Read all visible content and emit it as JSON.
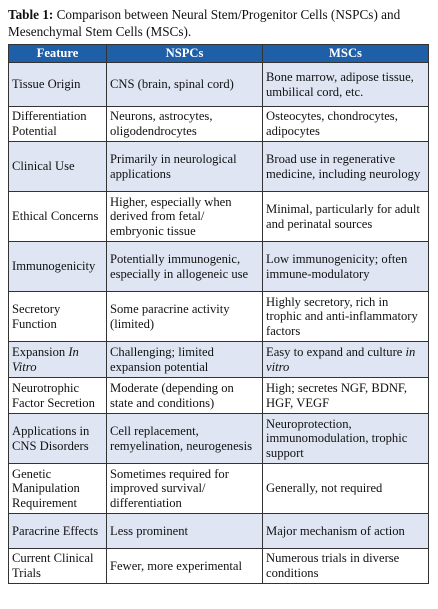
{
  "caption": {
    "label": "Table 1:",
    "text": " Comparison between Neural Stem/Progenitor Cells (NSPCs) and Mesenchymal Stem Cells (MSCs)."
  },
  "headers": [
    "Feature",
    "NSPCs",
    "MSCs"
  ],
  "rows": [
    {
      "feature": "Tissue Origin",
      "nspc": "CNS (brain, spinal cord)",
      "msc": "Bone marrow, adipose tissue, umbilical cord, etc."
    },
    {
      "feature": "Differentiation Potential",
      "nspc": "Neurons, astrocytes, oligodendrocytes",
      "msc": "Osteocytes, chondrocytes, adipocytes"
    },
    {
      "feature": "Clinical Use",
      "nspc": "Primarily in neurological applications",
      "msc": "Broad use in regenerative medicine, including neurology"
    },
    {
      "feature": "Ethical Concerns",
      "nspc": "Higher, especially when derived from fetal/ embryonic tissue",
      "msc": "Minimal, particularly for adult and perinatal sources"
    },
    {
      "feature": "Immunogenicity",
      "nspc": "Potentially immunogenic, especially in allogeneic use",
      "msc": "Low immunogenicity; often immune-modulatory"
    },
    {
      "feature": "Secretory Function",
      "nspc": "Some paracrine activity (limited)",
      "msc": "Highly secretory, rich in trophic and anti-inflammatory factors"
    },
    {
      "feature_pre": "Expansion ",
      "feature_em": "In Vitro",
      "nspc": "Challenging; limited expansion potential",
      "msc_pre": "Easy to expand and culture ",
      "msc_em": "in vitro"
    },
    {
      "feature": "Neurotrophic Factor Secretion",
      "nspc": "Moderate (depending on state and conditions)",
      "msc": "High; secretes NGF, BDNF, HGF, VEGF"
    },
    {
      "feature": "Applications in CNS Disorders",
      "nspc": "Cell replacement, remyelination, neurogenesis",
      "msc": "Neuroprotection, immunomodulation, trophic support"
    },
    {
      "feature": "Genetic Manipulation Requirement",
      "nspc": "Sometimes required for improved survival/ differentiation",
      "msc": "Generally, not required"
    },
    {
      "feature": "Paracrine Effects",
      "nspc": "Less prominent",
      "msc": "Major mechanism of action"
    },
    {
      "feature": "Current Clinical Trials",
      "nspc": "Fewer, more experimental",
      "msc": "Numerous trials in diverse conditions"
    }
  ]
}
